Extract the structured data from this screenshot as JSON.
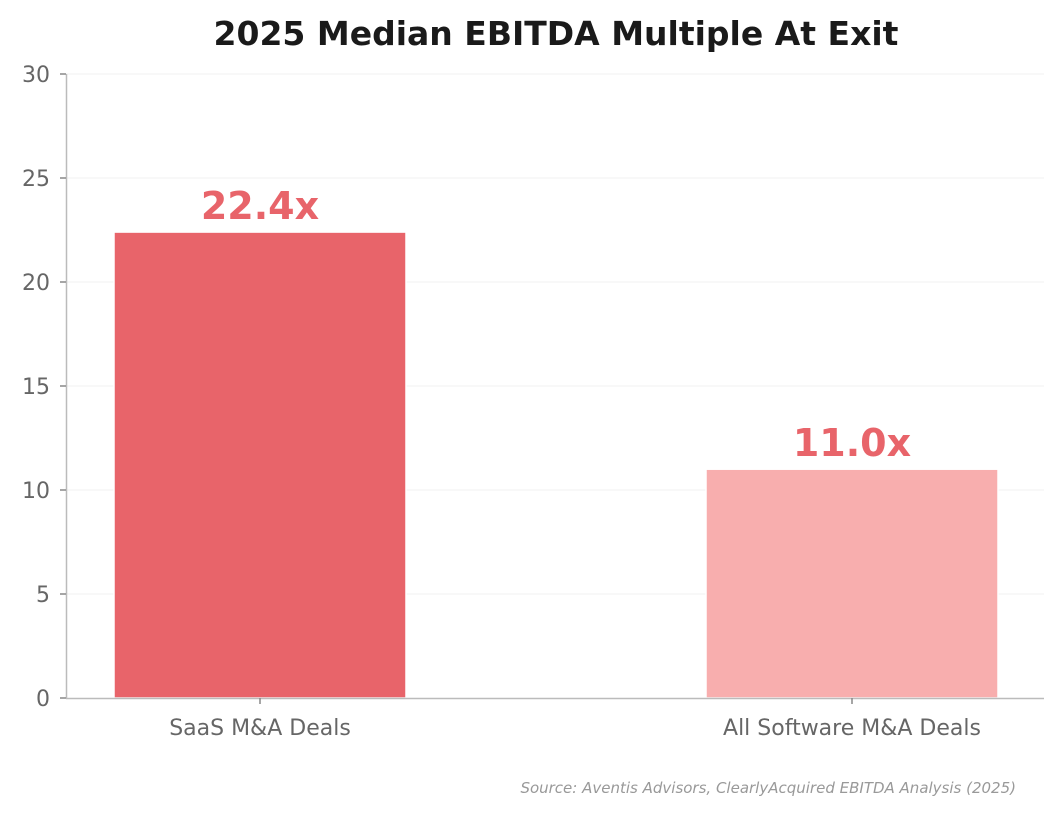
{
  "chart_data": {
    "type": "bar",
    "title": "2025 Median EBITDA Multiple At Exit",
    "categories": [
      "SaaS M&A Deals",
      "All Software M&A Deals"
    ],
    "values": [
      22.4,
      11.0
    ],
    "data_labels": [
      "22.4x",
      "11.0x"
    ],
    "bar_colors": [
      "#e8646a",
      "#f8aeae"
    ],
    "label_color": "#e8646a",
    "xlabel": "",
    "ylabel": "",
    "ylim": [
      0,
      30
    ],
    "yticks": [
      0,
      5,
      10,
      15,
      20,
      25,
      30
    ],
    "grid": "horizontal, faint",
    "legend": "none",
    "source": "Source: Aventis Advisors, ClearlyAcquired EBITDA Analysis (2025)"
  }
}
